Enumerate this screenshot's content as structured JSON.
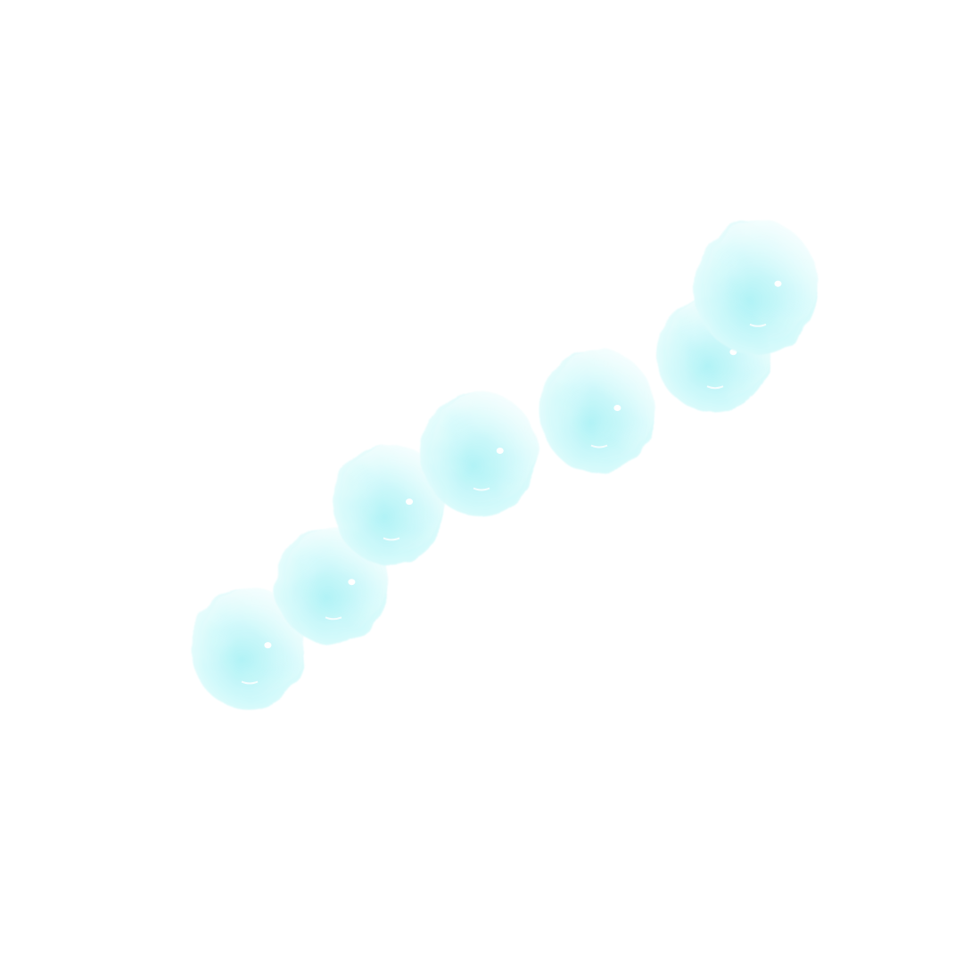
{
  "scene": {
    "subject": "watercolor-cyan-blobs",
    "background_color": "#ffffff",
    "blob_light_color": "#e9fdfd",
    "blob_mid_color": "#c2f7f9",
    "blob_dark_color": "#9beff4",
    "highlight_color": "#ffffff",
    "blob_count": 7
  }
}
